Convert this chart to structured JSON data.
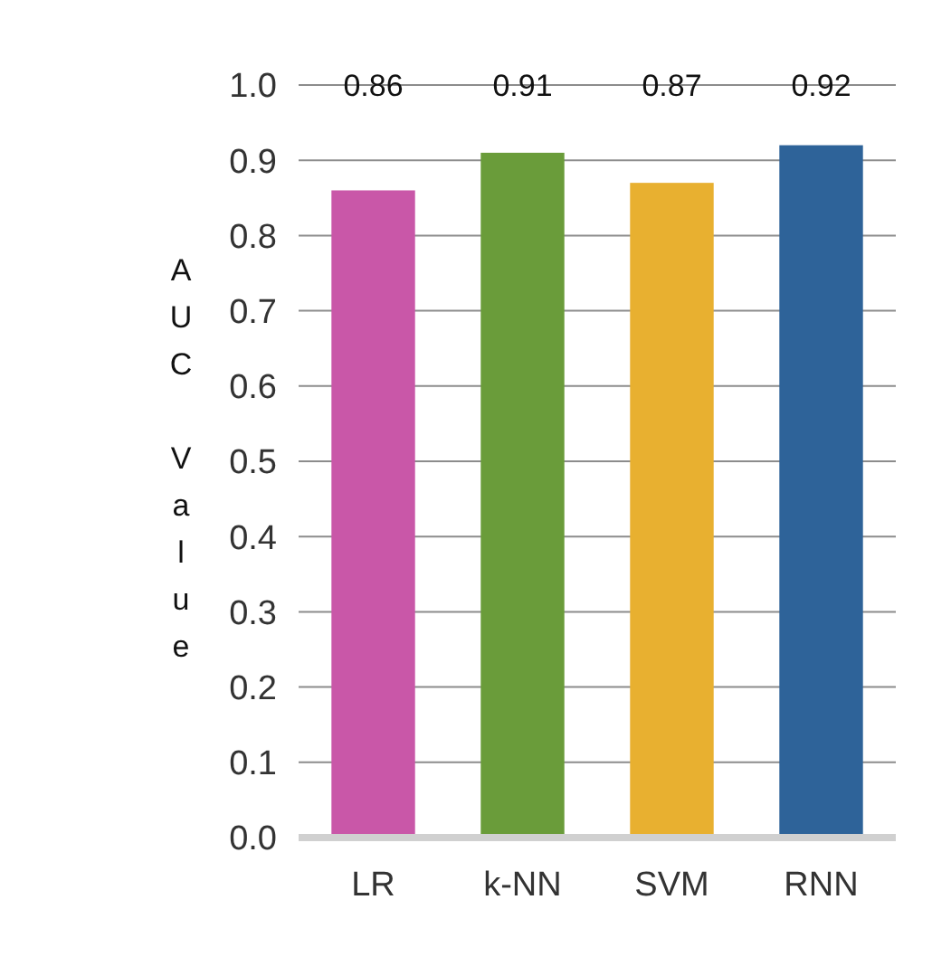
{
  "chart_data": {
    "type": "bar",
    "ylabel": "AUC Value",
    "categories": [
      "LR",
      "k-NN",
      "SVM",
      "RNN"
    ],
    "values": [
      0.86,
      0.91,
      0.87,
      0.92
    ],
    "colors": [
      "#c957a8",
      "#6a9c3a",
      "#e8b030",
      "#2e6399"
    ],
    "ylim": [
      0,
      1
    ],
    "yticks": [
      "0.0",
      "0.1",
      "0.2",
      "0.3",
      "0.4",
      "0.5",
      "0.6",
      "0.7",
      "0.8",
      "0.9",
      "1.0"
    ],
    "grid": "y",
    "data_labels": true
  }
}
